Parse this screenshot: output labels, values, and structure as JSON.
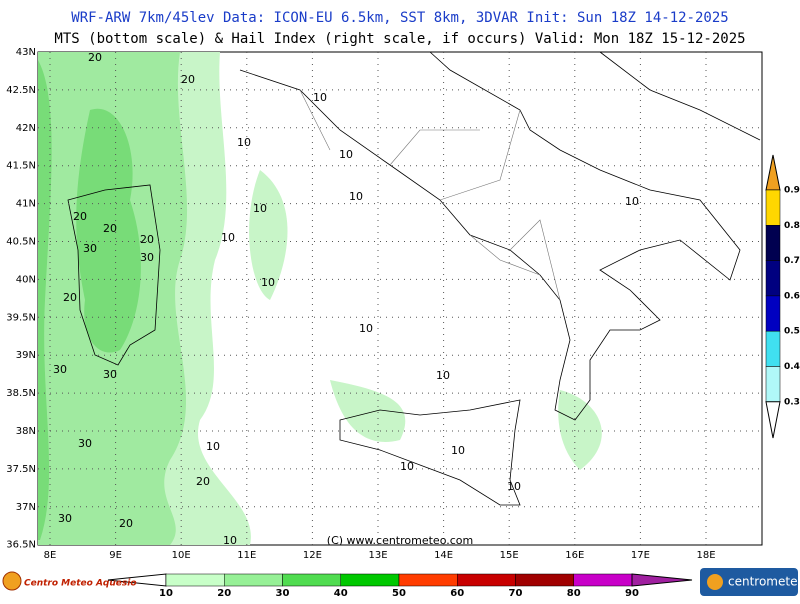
{
  "header": {
    "line1": "WRF-ARW 7km/45lev   Data: ICON-EU 6.5km, SST 8km, 3DVAR    Init: Sun 18Z 14-12-2025",
    "line2": "MTS (bottom scale) & Hail Index (right scale, if occurs) Valid: Mon 18Z 15-12-2025"
  },
  "lat_labels": [
    "43N",
    "42.5N",
    "42N",
    "41.5N",
    "41N",
    "40.5N",
    "40N",
    "39.5N",
    "39N",
    "38.5N",
    "38N",
    "37.5N",
    "37N",
    "36.5N"
  ],
  "lon_labels": [
    "8E",
    "9E",
    "10E",
    "11E",
    "12E",
    "13E",
    "14E",
    "15E",
    "16E",
    "17E",
    "18E"
  ],
  "contour_labels": [
    "20",
    "20",
    "10",
    "10",
    "10",
    "10",
    "10",
    "10",
    "20",
    "20",
    "20",
    "30",
    "10",
    "30",
    "10",
    "20",
    "10",
    "30",
    "30",
    "10",
    "30",
    "10",
    "10",
    "10",
    "20",
    "10",
    "30",
    "20",
    "10"
  ],
  "copyright": "(C) www.centrometeo.com",
  "mts_scale": [
    10,
    20,
    30,
    40,
    50,
    60,
    70,
    80,
    90
  ],
  "hail_scale": [
    0.9,
    0.8,
    0.7,
    0.6,
    0.5,
    0.4,
    0.3
  ],
  "logo_left": "Centro Meteo Aquesio",
  "logo_right": "centrometeo"
}
